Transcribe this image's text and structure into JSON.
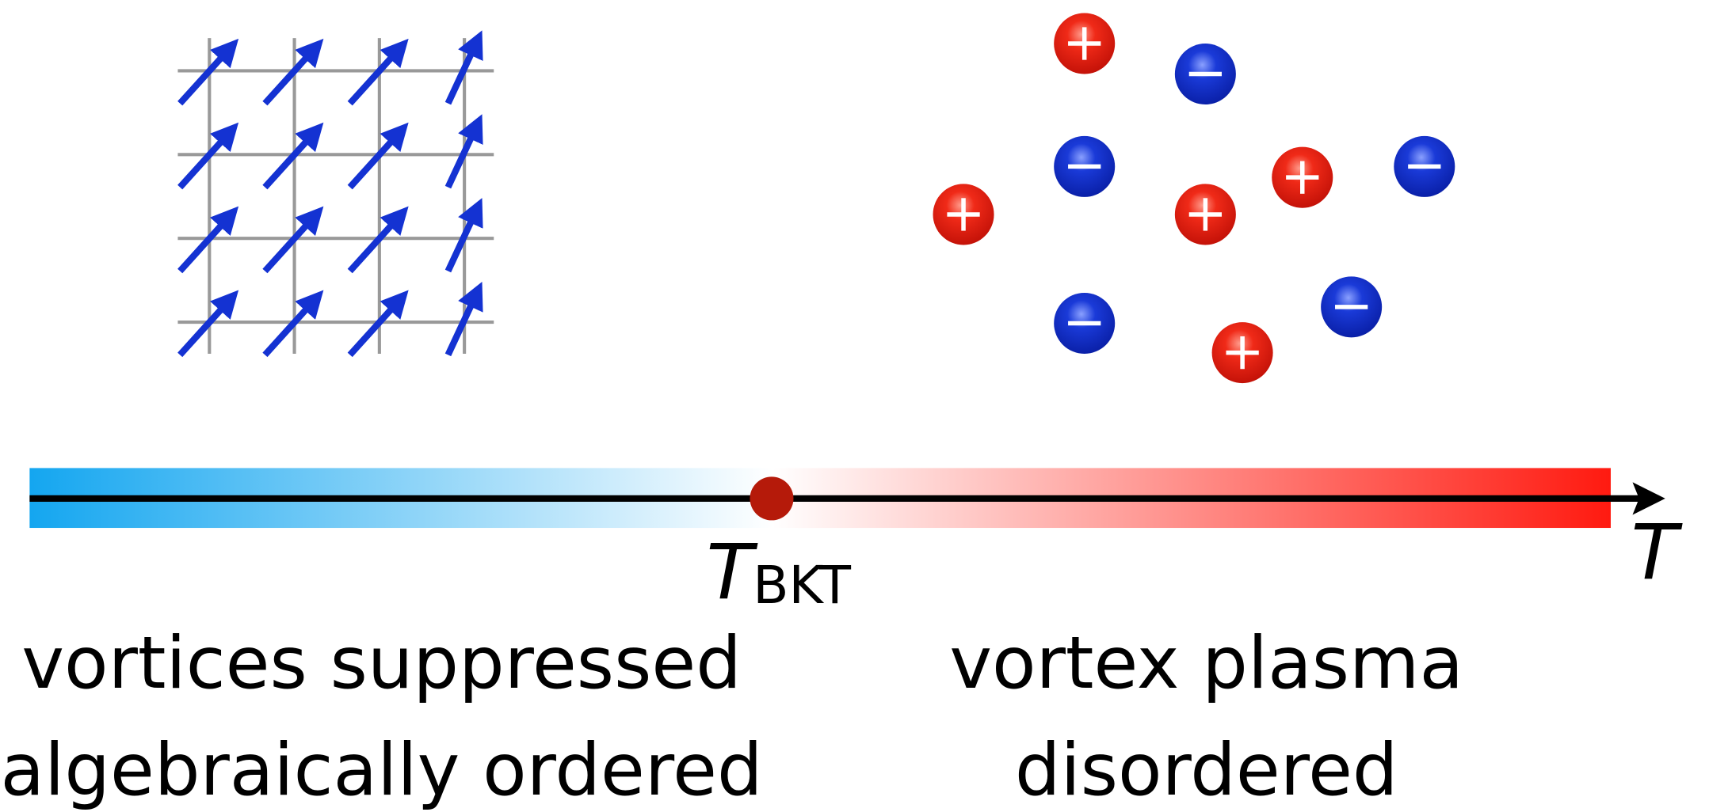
{
  "axis_label": "T",
  "critical_point": {
    "symbol": "T",
    "subscript": "BKT"
  },
  "left_phase": {
    "lines": [
      "vortices suppressed",
      "algebraically ordered"
    ]
  },
  "right_phase": {
    "lines": [
      "vortex plasma",
      "disordered"
    ]
  }
}
